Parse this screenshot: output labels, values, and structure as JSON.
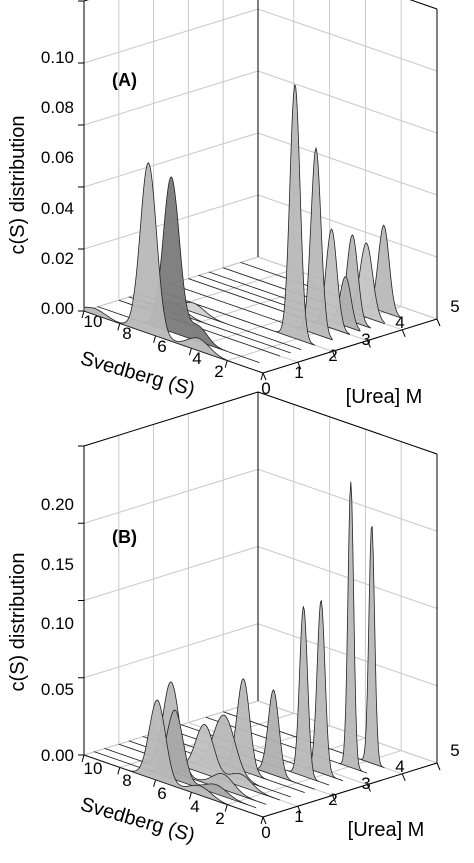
{
  "figure": {
    "panels": [
      {
        "label": "(A)",
        "ylabel": "c(S) distribution",
        "y_ticks": [
          "0.00",
          "0.02",
          "0.04",
          "0.06",
          "0.08",
          "0.10"
        ],
        "s_axis_label": "Svedberg (S)",
        "s_ticks": [
          "10",
          "8",
          "6",
          "4",
          "2"
        ],
        "urea_axis_label": "[Urea] M",
        "urea_ticks": [
          "0",
          "1",
          "2",
          "3",
          "4",
          "5"
        ]
      },
      {
        "label": "(B)",
        "ylabel": "c(S) distribution",
        "y_ticks": [
          "0.00",
          "0.05",
          "0.10",
          "0.15",
          "0.20"
        ],
        "s_axis_label": "Svedberg (S)",
        "s_ticks": [
          "10",
          "8",
          "6",
          "4",
          "2"
        ],
        "urea_axis_label": "[Urea] M",
        "urea_ticks": [
          "0",
          "1",
          "2",
          "3",
          "4",
          "5"
        ]
      }
    ]
  },
  "chart_data": [
    {
      "type": "area",
      "title": "(A)",
      "ylabel": "c(S) distribution",
      "x_label": "Svedberg (S)",
      "z_label": "[Urea] M",
      "ylim": [
        0,
        0.1
      ],
      "x_lim": [
        1,
        10
      ],
      "z_lim": [
        0,
        5
      ],
      "grid": true,
      "traces": [
        {
          "urea": 0.0,
          "fill": "#b8b8b8",
          "peaks": [
            {
              "s": 9.4,
              "height": 0.002,
              "width": 0.6
            },
            {
              "s": 6.4,
              "height": 0.055,
              "width": 0.45
            },
            {
              "s": 3.6,
              "height": 0.004,
              "width": 0.6
            }
          ]
        },
        {
          "urea": 0.4,
          "fill": "#7a7a7a",
          "peaks": [
            {
              "s": 5.9,
              "height": 0.05,
              "width": 0.45
            },
            {
              "s": 4.4,
              "height": 0.005,
              "width": 0.5
            }
          ]
        },
        {
          "urea": 1.0,
          "fill": "#d0d0d0",
          "peaks": [
            {
              "s": 7.5,
              "height": 0.003,
              "width": 0.6
            }
          ]
        },
        {
          "urea": 1.3,
          "fill": "#d0d0d0",
          "peaks": [
            {
              "s": 7.5,
              "height": 0.003,
              "width": 0.6
            }
          ]
        },
        {
          "urea": 1.6,
          "fill": "#d0d0d0",
          "peaks": [
            {
              "s": 7.0,
              "height": 0.003,
              "width": 0.6
            }
          ]
        },
        {
          "urea": 2.0,
          "fill": "#b8b8b8",
          "peaks": [
            {
              "s": 2.1,
              "height": 0.082,
              "width": 0.28
            }
          ]
        },
        {
          "urea": 2.5,
          "fill": "#b8b8b8",
          "peaks": [
            {
              "s": 1.9,
              "height": 0.06,
              "width": 0.28
            }
          ]
        },
        {
          "urea": 3.0,
          "fill": "#c0c0c0",
          "peaks": [
            {
              "s": 2.0,
              "height": 0.032,
              "width": 0.3
            }
          ]
        },
        {
          "urea": 3.3,
          "fill": "#b0b0b0",
          "peaks": [
            {
              "s": 1.8,
              "height": 0.016,
              "width": 0.3
            }
          ]
        },
        {
          "urea": 3.6,
          "fill": "#b8b8b8",
          "peaks": [
            {
              "s": 2.0,
              "height": 0.028,
              "width": 0.3
            }
          ]
        },
        {
          "urea": 4.0,
          "fill": "#c4c4c4",
          "peaks": [
            {
              "s": 2.0,
              "height": 0.024,
              "width": 0.35
            }
          ]
        },
        {
          "urea": 4.5,
          "fill": "#b8b8b8",
          "peaks": [
            {
              "s": 2.0,
              "height": 0.028,
              "width": 0.3
            }
          ]
        }
      ]
    },
    {
      "type": "area",
      "title": "(B)",
      "ylabel": "c(S) distribution",
      "x_label": "Svedberg (S)",
      "z_label": "[Urea] M",
      "ylim": [
        0,
        0.2
      ],
      "x_lim": [
        1,
        10
      ],
      "z_lim": [
        0,
        5
      ],
      "grid": true,
      "traces": [
        {
          "urea": 0.0,
          "fill": "#b8b8b8",
          "peaks": [
            {
              "s": 5.9,
              "height": 0.052,
              "width": 0.45
            },
            {
              "s": 3.5,
              "height": 0.006,
              "width": 0.6
            }
          ]
        },
        {
          "urea": 0.3,
          "fill": "#a8a8a8",
          "peaks": [
            {
              "s": 5.5,
              "height": 0.045,
              "width": 0.45
            },
            {
              "s": 3.2,
              "height": 0.006,
              "width": 0.6
            }
          ]
        },
        {
          "urea": 0.6,
          "fill": "#b8b8b8",
          "peaks": [
            {
              "s": 6.3,
              "height": 0.058,
              "width": 0.45
            },
            {
              "s": 3.4,
              "height": 0.01,
              "width": 0.6
            }
          ]
        },
        {
          "urea": 1.0,
          "fill": "#c0c0c0",
          "peaks": [
            {
              "s": 5.2,
              "height": 0.032,
              "width": 0.5
            },
            {
              "s": 3.2,
              "height": 0.008,
              "width": 0.6
            }
          ]
        },
        {
          "urea": 1.3,
          "fill": "#b8b8b8",
          "peaks": [
            {
              "s": 4.7,
              "height": 0.038,
              "width": 0.6
            }
          ]
        },
        {
          "urea": 1.7,
          "fill": "#b8b8b8",
          "peaks": [
            {
              "s": 4.4,
              "height": 0.06,
              "width": 0.35
            }
          ]
        },
        {
          "urea": 2.0,
          "fill": "#b0b0b0",
          "peaks": [
            {
              "s": 3.3,
              "height": 0.055,
              "width": 0.3
            }
          ]
        },
        {
          "urea": 2.4,
          "fill": "#b8b8b8",
          "peaks": [
            {
              "s": 2.4,
              "height": 0.11,
              "width": 0.22
            }
          ]
        },
        {
          "urea": 2.8,
          "fill": "#b8b8b8",
          "peaks": [
            {
              "s": 2.2,
              "height": 0.112,
              "width": 0.22
            }
          ]
        },
        {
          "urea": 3.5,
          "fill": "#b8b8b8",
          "peaks": [
            {
              "s": 1.9,
              "height": 0.185,
              "width": 0.16
            }
          ]
        },
        {
          "urea": 4.0,
          "fill": "#b8b8b8",
          "peaks": [
            {
              "s": 1.7,
              "height": 0.155,
              "width": 0.16
            }
          ]
        }
      ]
    }
  ]
}
